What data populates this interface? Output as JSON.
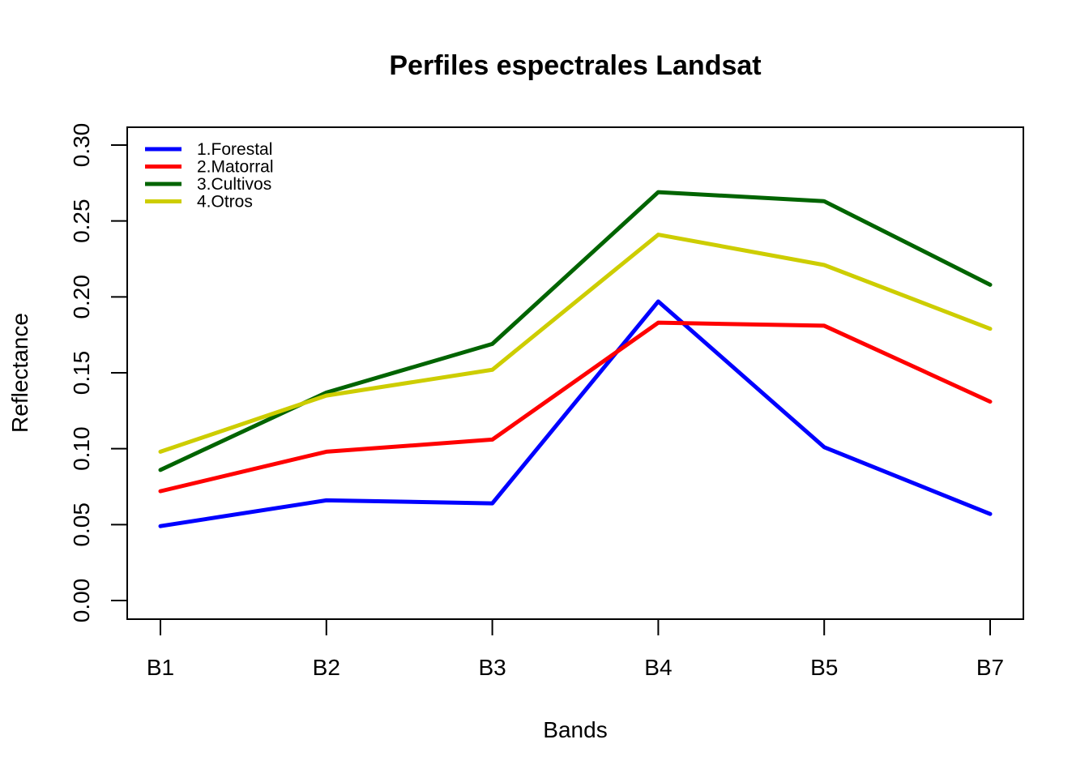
{
  "chart_data": {
    "type": "line",
    "title": "Perfiles espectrales Landsat",
    "xlabel": "Bands",
    "ylabel": "Reflectance",
    "categories": [
      "B1",
      "B2",
      "B3",
      "B4",
      "B5",
      "B7"
    ],
    "ylim": [
      0,
      0.3
    ],
    "yticks": [
      "0.00",
      "0.05",
      "0.10",
      "0.15",
      "0.20",
      "0.25",
      "0.30"
    ],
    "grid": false,
    "legend_position": "top-left",
    "series": [
      {
        "name": "1.Forestal",
        "color": "#0000FF",
        "values": [
          0.049,
          0.066,
          0.064,
          0.197,
          0.101,
          0.057
        ]
      },
      {
        "name": "2.Matorral",
        "color": "#FF0000",
        "values": [
          0.072,
          0.098,
          0.106,
          0.183,
          0.181,
          0.131
        ]
      },
      {
        "name": "3.Cultivos",
        "color": "#006400",
        "values": [
          0.086,
          0.137,
          0.169,
          0.269,
          0.263,
          0.208
        ]
      },
      {
        "name": "4.Otros",
        "color": "#CDCD00",
        "values": [
          0.098,
          0.135,
          0.152,
          0.241,
          0.221,
          0.179
        ]
      }
    ]
  }
}
